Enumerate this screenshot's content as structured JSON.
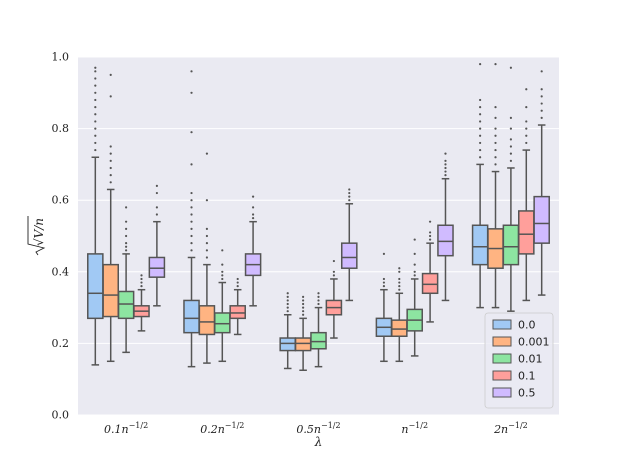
{
  "chart_data": {
    "type": "box",
    "title": "",
    "xlabel": "λ",
    "ylabel": "√V/n",
    "ylim": [
      0.0,
      1.0
    ],
    "yticks": [
      "0.0",
      "0.2",
      "0.4",
      "0.6",
      "0.8",
      "1.0"
    ],
    "ytick_values": [
      0.0,
      0.2,
      0.4,
      0.6,
      0.8,
      1.0
    ],
    "categories": [
      "0.1n^{-1/2}",
      "0.2n^{-1/2}",
      "0.5n^{-1/2}",
      "n^{-1/2}",
      "2n^{-1/2}"
    ],
    "category_labels": [
      {
        "base": "0.1n",
        "exp": "−1/2"
      },
      {
        "base": "0.2n",
        "exp": "−1/2"
      },
      {
        "base": "0.5n",
        "exp": "−1/2"
      },
      {
        "base": "n",
        "exp": "−1/2"
      },
      {
        "base": "2n",
        "exp": "−1/2"
      }
    ],
    "legend": {
      "position": "lower-right"
    },
    "series": [
      {
        "name": "0.0",
        "color": "#a1c9f4",
        "boxes": [
          {
            "whislo": 0.14,
            "q1": 0.27,
            "med": 0.34,
            "q3": 0.45,
            "whishi": 0.72,
            "fliers": [
              0.74,
              0.76,
              0.78,
              0.8,
              0.82,
              0.84,
              0.86,
              0.88,
              0.9,
              0.92,
              0.94,
              0.96,
              0.97
            ]
          },
          {
            "whislo": 0.135,
            "q1": 0.23,
            "med": 0.27,
            "q3": 0.32,
            "whishi": 0.44,
            "fliers": [
              0.46,
              0.48,
              0.5,
              0.52,
              0.54,
              0.56,
              0.58,
              0.6,
              0.62,
              0.7,
              0.79,
              0.9,
              0.96
            ]
          },
          {
            "whislo": 0.13,
            "q1": 0.18,
            "med": 0.2,
            "q3": 0.215,
            "whishi": 0.28,
            "fliers": [
              0.29,
              0.3,
              0.31,
              0.32,
              0.33,
              0.34
            ]
          },
          {
            "whislo": 0.15,
            "q1": 0.22,
            "med": 0.245,
            "q3": 0.27,
            "whishi": 0.35,
            "fliers": [
              0.36,
              0.37,
              0.38,
              0.45
            ]
          },
          {
            "whislo": 0.3,
            "q1": 0.42,
            "med": 0.47,
            "q3": 0.53,
            "whishi": 0.7,
            "fliers": [
              0.72,
              0.74,
              0.76,
              0.78,
              0.8,
              0.82,
              0.84,
              0.86,
              0.88,
              0.98
            ]
          }
        ]
      },
      {
        "name": "0.001",
        "color": "#ffb482",
        "boxes": [
          {
            "whislo": 0.15,
            "q1": 0.275,
            "med": 0.335,
            "q3": 0.42,
            "whishi": 0.63,
            "fliers": [
              0.65,
              0.67,
              0.69,
              0.71,
              0.73,
              0.75,
              0.89,
              0.95
            ]
          },
          {
            "whislo": 0.145,
            "q1": 0.225,
            "med": 0.26,
            "q3": 0.305,
            "whishi": 0.42,
            "fliers": [
              0.44,
              0.46,
              0.48,
              0.5,
              0.52,
              0.6,
              0.73
            ]
          },
          {
            "whislo": 0.125,
            "q1": 0.18,
            "med": 0.2,
            "q3": 0.215,
            "whishi": 0.27,
            "fliers": [
              0.28,
              0.29,
              0.3,
              0.31,
              0.32,
              0.33
            ]
          },
          {
            "whislo": 0.15,
            "q1": 0.22,
            "med": 0.24,
            "q3": 0.265,
            "whishi": 0.34,
            "fliers": [
              0.35,
              0.36,
              0.37,
              0.38,
              0.4,
              0.41
            ]
          },
          {
            "whislo": 0.3,
            "q1": 0.41,
            "med": 0.465,
            "q3": 0.52,
            "whishi": 0.68,
            "fliers": [
              0.7,
              0.72,
              0.74,
              0.76,
              0.78,
              0.8,
              0.83,
              0.86,
              0.98
            ]
          }
        ]
      },
      {
        "name": "0.01",
        "color": "#8de5a1",
        "boxes": [
          {
            "whislo": 0.175,
            "q1": 0.27,
            "med": 0.31,
            "q3": 0.345,
            "whishi": 0.45,
            "fliers": [
              0.46,
              0.47,
              0.48,
              0.5,
              0.52,
              0.54,
              0.58
            ]
          },
          {
            "whislo": 0.15,
            "q1": 0.23,
            "med": 0.255,
            "q3": 0.285,
            "whishi": 0.37,
            "fliers": [
              0.38,
              0.39,
              0.4,
              0.42,
              0.46
            ]
          },
          {
            "whislo": 0.135,
            "q1": 0.185,
            "med": 0.205,
            "q3": 0.23,
            "whishi": 0.3,
            "fliers": [
              0.31,
              0.32,
              0.33,
              0.34
            ]
          },
          {
            "whislo": 0.165,
            "q1": 0.235,
            "med": 0.265,
            "q3": 0.295,
            "whishi": 0.38,
            "fliers": [
              0.39,
              0.4,
              0.42,
              0.45,
              0.49
            ]
          },
          {
            "whislo": 0.29,
            "q1": 0.42,
            "med": 0.47,
            "q3": 0.53,
            "whishi": 0.69,
            "fliers": [
              0.71,
              0.73,
              0.75,
              0.77,
              0.8,
              0.83,
              0.97
            ]
          }
        ]
      },
      {
        "name": "0.1",
        "color": "#ff9f9b",
        "boxes": [
          {
            "whislo": 0.235,
            "q1": 0.275,
            "med": 0.29,
            "q3": 0.305,
            "whishi": 0.35,
            "fliers": [
              0.36,
              0.37,
              0.38,
              0.39
            ]
          },
          {
            "whislo": 0.225,
            "q1": 0.27,
            "med": 0.285,
            "q3": 0.305,
            "whishi": 0.35,
            "fliers": [
              0.36,
              0.37,
              0.38
            ]
          },
          {
            "whislo": 0.215,
            "q1": 0.28,
            "med": 0.3,
            "q3": 0.32,
            "whishi": 0.38,
            "fliers": [
              0.39,
              0.4,
              0.43
            ]
          },
          {
            "whislo": 0.26,
            "q1": 0.34,
            "med": 0.365,
            "q3": 0.395,
            "whishi": 0.48,
            "fliers": [
              0.49,
              0.5,
              0.51,
              0.54
            ]
          },
          {
            "whislo": 0.32,
            "q1": 0.45,
            "med": 0.505,
            "q3": 0.57,
            "whishi": 0.74,
            "fliers": [
              0.76,
              0.78,
              0.8,
              0.82,
              0.86,
              0.91
            ]
          }
        ]
      },
      {
        "name": "0.5",
        "color": "#d0bbff",
        "boxes": [
          {
            "whislo": 0.305,
            "q1": 0.385,
            "med": 0.41,
            "q3": 0.44,
            "whishi": 0.54,
            "fliers": [
              0.56,
              0.58,
              0.62,
              0.64
            ]
          },
          {
            "whislo": 0.305,
            "q1": 0.39,
            "med": 0.42,
            "q3": 0.45,
            "whishi": 0.54,
            "fliers": [
              0.55,
              0.56,
              0.58,
              0.61
            ]
          },
          {
            "whislo": 0.32,
            "q1": 0.41,
            "med": 0.44,
            "q3": 0.48,
            "whishi": 0.59,
            "fliers": [
              0.6,
              0.61,
              0.62,
              0.63
            ]
          },
          {
            "whislo": 0.32,
            "q1": 0.445,
            "med": 0.485,
            "q3": 0.53,
            "whishi": 0.66,
            "fliers": [
              0.67,
              0.68,
              0.69,
              0.7,
              0.71,
              0.73
            ]
          },
          {
            "whislo": 0.335,
            "q1": 0.48,
            "med": 0.535,
            "q3": 0.61,
            "whishi": 0.81,
            "fliers": [
              0.83,
              0.85,
              0.87,
              0.89,
              0.91,
              0.96
            ]
          }
        ]
      }
    ]
  }
}
